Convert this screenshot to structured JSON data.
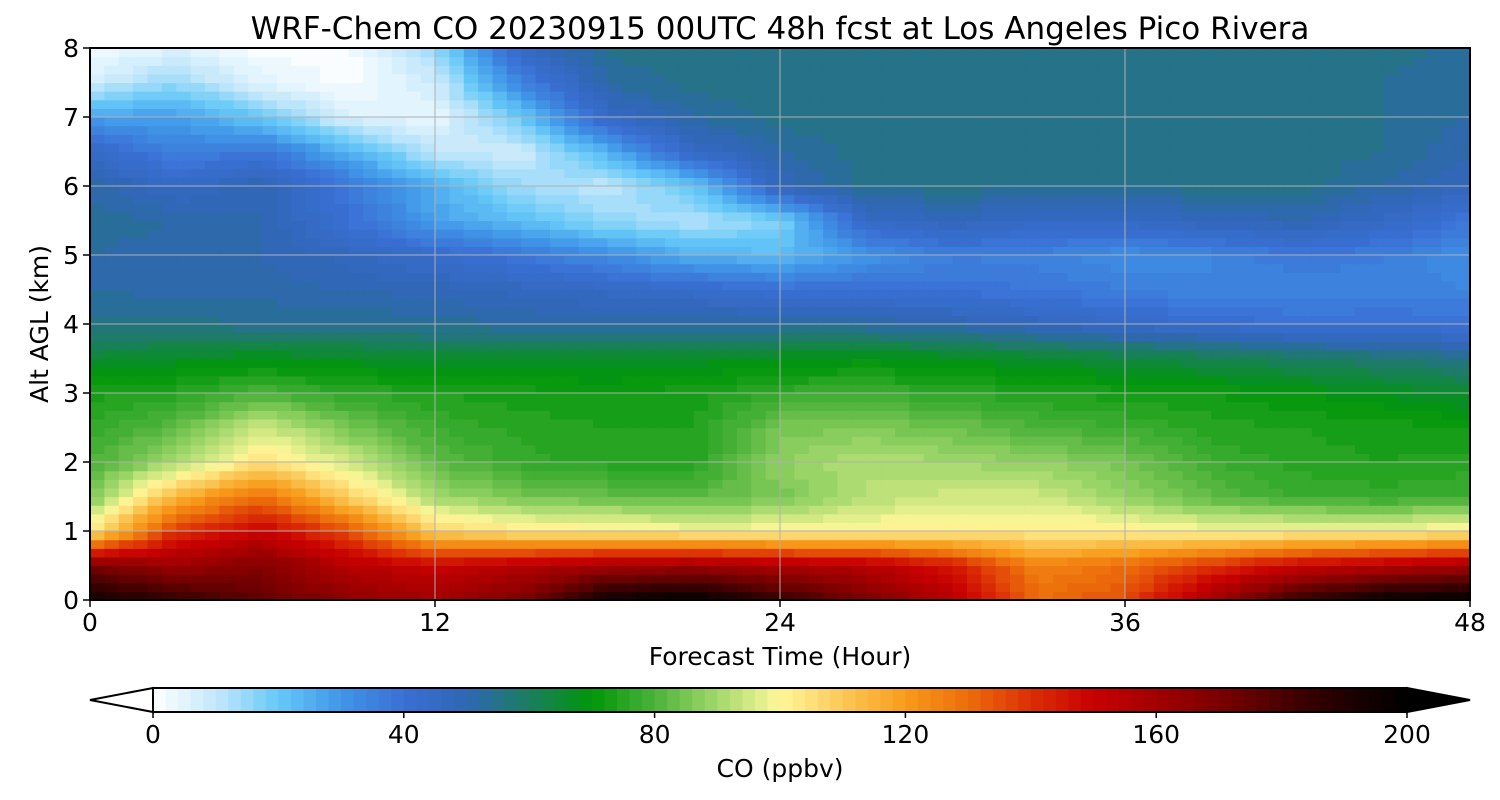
{
  "chart_data": {
    "type": "heatmap",
    "title": "WRF-Chem CO  20230915 00UTC 48h fcst at Los Angeles Pico Rivera",
    "xlabel": "Forecast Time (Hour)",
    "ylabel": "Alt AGL (km)",
    "xlim": [
      0,
      48
    ],
    "ylim": [
      0,
      8
    ],
    "xticks": [
      0,
      12,
      24,
      36,
      48
    ],
    "yticks": [
      0,
      1,
      2,
      3,
      4,
      5,
      6,
      7,
      8
    ],
    "grid": true,
    "x": [
      0,
      3,
      6,
      9,
      12,
      15,
      18,
      21,
      24,
      27,
      30,
      33,
      36,
      39,
      42,
      45,
      48
    ],
    "y": [
      0,
      0.5,
      1,
      1.5,
      2,
      2.5,
      3,
      3.5,
      4,
      4.5,
      5,
      5.5,
      6,
      6.5,
      7,
      7.5,
      8
    ],
    "z": [
      [
        195,
        185,
        175,
        165,
        160,
        170,
        195,
        200,
        185,
        170,
        155,
        130,
        135,
        160,
        185,
        198,
        200
      ],
      [
        170,
        162,
        168,
        155,
        150,
        155,
        160,
        162,
        158,
        155,
        145,
        125,
        130,
        140,
        150,
        155,
        160
      ],
      [
        102,
        140,
        150,
        135,
        108,
        103,
        102,
        100,
        100,
        101,
        102,
        103,
        102,
        100,
        100,
        100,
        102
      ],
      [
        85,
        115,
        130,
        108,
        90,
        85,
        83,
        82,
        85,
        92,
        95,
        95,
        88,
        82,
        78,
        77,
        78
      ],
      [
        80,
        90,
        105,
        95,
        82,
        77,
        75,
        75,
        88,
        92,
        90,
        88,
        85,
        78,
        75,
        74,
        75
      ],
      [
        77,
        82,
        95,
        85,
        78,
        75,
        74,
        74,
        85,
        86,
        84,
        80,
        78,
        75,
        74,
        73,
        72
      ],
      [
        73,
        75,
        80,
        76,
        74,
        73,
        72,
        73,
        77,
        78,
        76,
        74,
        73,
        72,
        70,
        68,
        65
      ],
      [
        65,
        67,
        68,
        67,
        66,
        66,
        66,
        67,
        68,
        69,
        68,
        66,
        64,
        62,
        60,
        58,
        55
      ],
      [
        55,
        55,
        54,
        54,
        53,
        52,
        52,
        52,
        52,
        52,
        50,
        47,
        44,
        42,
        40,
        40,
        40
      ],
      [
        52,
        51,
        51,
        50,
        49,
        47,
        45,
        43,
        40,
        40,
        39,
        38,
        36,
        34,
        34,
        35,
        34
      ],
      [
        52,
        51,
        50,
        47,
        43,
        38,
        32,
        25,
        22,
        30,
        36,
        35,
        32,
        34,
        38,
        36,
        32
      ],
      [
        53,
        52,
        50,
        40,
        28,
        22,
        15,
        12,
        17,
        45,
        48,
        45,
        45,
        48,
        50,
        45,
        38
      ],
      [
        52,
        45,
        50,
        38,
        25,
        14,
        10,
        20,
        48,
        55,
        55,
        55,
        55,
        55,
        55,
        52,
        48
      ],
      [
        45,
        35,
        38,
        25,
        10,
        8,
        25,
        45,
        52,
        55,
        55,
        55,
        55,
        55,
        55,
        54,
        50
      ],
      [
        28,
        28,
        20,
        6,
        4,
        20,
        45,
        52,
        55,
        55,
        55,
        55,
        55,
        55,
        55,
        54,
        52
      ],
      [
        8,
        15,
        5,
        1,
        8,
        35,
        52,
        55,
        55,
        55,
        55,
        55,
        55,
        55,
        55,
        54,
        52
      ],
      [
        1,
        6,
        1,
        1,
        15,
        45,
        55,
        55,
        55,
        55,
        55,
        55,
        55,
        55,
        55,
        55,
        53
      ]
    ],
    "colorbar": {
      "label": "CO  (ppbv)",
      "min": 0,
      "max": 200,
      "ticks": [
        0,
        40,
        80,
        120,
        160,
        200
      ],
      "extend": "both",
      "colors": [
        {
          "v": 0,
          "c": "#ffffff"
        },
        {
          "v": 10,
          "c": "#c4e8fb"
        },
        {
          "v": 20,
          "c": "#66c8f7"
        },
        {
          "v": 30,
          "c": "#4096e8"
        },
        {
          "v": 40,
          "c": "#3a6fd4"
        },
        {
          "v": 50,
          "c": "#2f67b4"
        },
        {
          "v": 60,
          "c": "#1b7d5e"
        },
        {
          "v": 70,
          "c": "#00960a"
        },
        {
          "v": 80,
          "c": "#4cb23a"
        },
        {
          "v": 90,
          "c": "#a2d86c"
        },
        {
          "v": 100,
          "c": "#fff79a"
        },
        {
          "v": 110,
          "c": "#fbc858"
        },
        {
          "v": 120,
          "c": "#f89b1a"
        },
        {
          "v": 130,
          "c": "#ec6d0b"
        },
        {
          "v": 140,
          "c": "#dc2f05"
        },
        {
          "v": 150,
          "c": "#c80000"
        },
        {
          "v": 160,
          "c": "#a20000"
        },
        {
          "v": 170,
          "c": "#7b0000"
        },
        {
          "v": 180,
          "c": "#4a0000"
        },
        {
          "v": 190,
          "c": "#200000"
        },
        {
          "v": 200,
          "c": "#000000"
        }
      ]
    }
  }
}
